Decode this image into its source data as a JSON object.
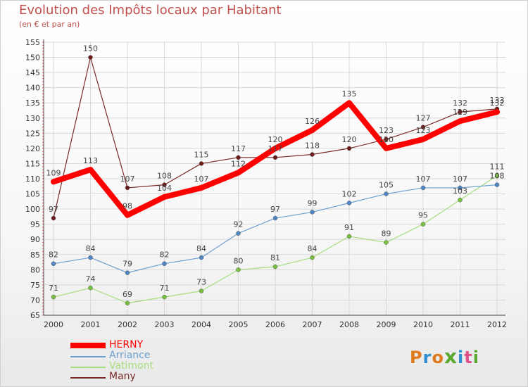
{
  "title": "Evolution des Impôts locaux par Habitant",
  "subtitle": "(en € et par an)",
  "logo": {
    "text": "Proxiti",
    "colors": [
      "#e07a1f",
      "#2f8fd0",
      "#e07a1f",
      "#5aa832",
      "#2f8fd0",
      "#e04f8a",
      "#5aa832"
    ]
  },
  "chart_data": {
    "type": "line",
    "title": "Evolution des Impôts locaux par Habitant",
    "subtitle": "(en € et par an)",
    "xlabel": "",
    "ylabel": "",
    "categories": [
      "2000",
      "2001",
      "2002",
      "2003",
      "2004",
      "2005",
      "2006",
      "2007",
      "2008",
      "2009",
      "2010",
      "2011",
      "2012"
    ],
    "ylim": [
      65,
      155
    ],
    "yticks": [
      65,
      70,
      75,
      80,
      85,
      90,
      95,
      100,
      105,
      110,
      115,
      120,
      125,
      130,
      135,
      140,
      145,
      150,
      155
    ],
    "grid": true,
    "legend_position": "bottom-left",
    "series": [
      {
        "name": "Many",
        "color": "#7a2a2a",
        "marker": "#6b1a1a",
        "width": 1.2,
        "values": [
          97,
          150,
          107,
          108,
          115,
          117,
          117,
          118,
          120,
          123,
          127,
          132,
          133
        ]
      },
      {
        "name": "Vatimont",
        "color": "#a6de7e",
        "marker": "#77c13f",
        "width": 1.2,
        "values": [
          71,
          74,
          69,
          71,
          73,
          80,
          81,
          84,
          91,
          89,
          95,
          103,
          111
        ]
      },
      {
        "name": "Arriance",
        "color": "#6a9fd0",
        "marker": "#4f86c6",
        "width": 1.2,
        "values": [
          82,
          84,
          79,
          82,
          84,
          92,
          97,
          99,
          102,
          105,
          107,
          107,
          108
        ]
      },
      {
        "name": "HERNY",
        "color": "#ff0000",
        "marker": "#ff0000",
        "width": 8,
        "values": [
          109,
          113,
          98,
          104,
          107,
          112,
          120,
          126,
          135,
          120,
          123,
          129,
          132
        ]
      }
    ]
  },
  "legend": [
    {
      "label": "HERNY",
      "color": "#ff0000",
      "thickness": 8
    },
    {
      "label": "Arriance",
      "color": "#6a9fd0",
      "thickness": 2
    },
    {
      "label": "Vatimont",
      "color": "#a6de7e",
      "thickness": 2
    },
    {
      "label": "Many",
      "color": "#7a2a2a",
      "thickness": 2
    }
  ]
}
